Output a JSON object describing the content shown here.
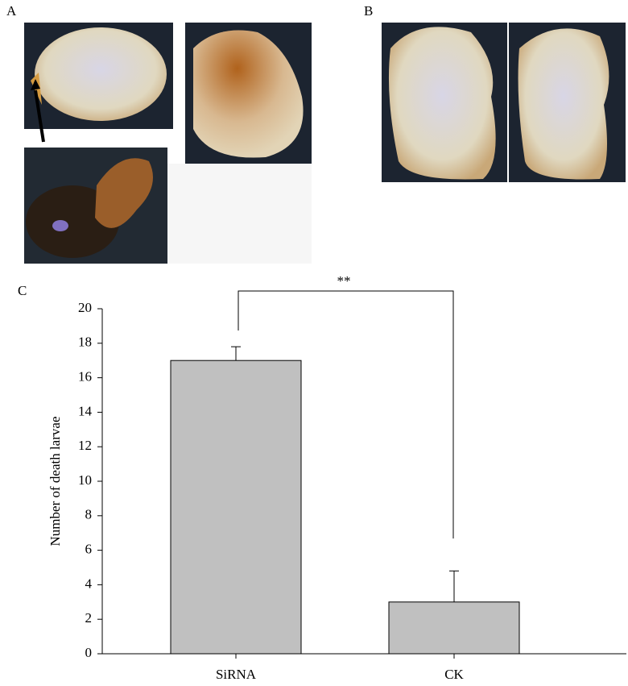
{
  "panel_labels": [
    "A",
    "B",
    "C"
  ],
  "chart_data": {
    "type": "bar",
    "ylabel": "Number of death larvae",
    "categories": [
      "SiRNA",
      "CK"
    ],
    "values": [
      17,
      3
    ],
    "errors": [
      0.8,
      1.8
    ],
    "color": "#c0c0c0",
    "ylim": [
      0,
      20
    ],
    "yticks": [
      0,
      2,
      4,
      6,
      8,
      10,
      12,
      14,
      16,
      18,
      20
    ],
    "annotation": "**"
  }
}
